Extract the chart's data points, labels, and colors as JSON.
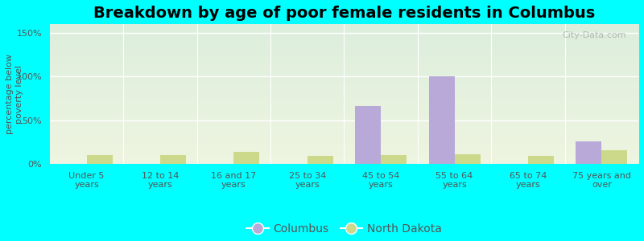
{
  "title": "Breakdown by age of poor female residents in Columbus",
  "ylabel": "percentage below\npoverty level",
  "categories": [
    "Under 5\nyears",
    "12 to 14\nyears",
    "16 and 17\nyears",
    "25 to 34\nyears",
    "45 to 54\nyears",
    "55 to 64\nyears",
    "65 to 74\nyears",
    "75 years and\nover"
  ],
  "columbus_values": [
    0,
    0,
    0,
    0,
    66,
    100,
    0,
    26
  ],
  "north_dakota_values": [
    10,
    10,
    14,
    9,
    10,
    11,
    9,
    16
  ],
  "columbus_color": "#b8a9d9",
  "north_dakota_color": "#cdd98a",
  "ylim": [
    0,
    160
  ],
  "yticks": [
    0,
    50,
    100,
    150
  ],
  "ytick_labels": [
    "0%",
    "50%",
    "100%",
    "150%"
  ],
  "bar_width": 0.35,
  "plot_bg_top": "#e8f0d8",
  "plot_bg_bottom": "#f0f5e8",
  "outer_bg": "#00ffff",
  "title_fontsize": 14,
  "axis_label_fontsize": 8,
  "tick_fontsize": 8,
  "legend_fontsize": 10,
  "text_color": "#555555"
}
